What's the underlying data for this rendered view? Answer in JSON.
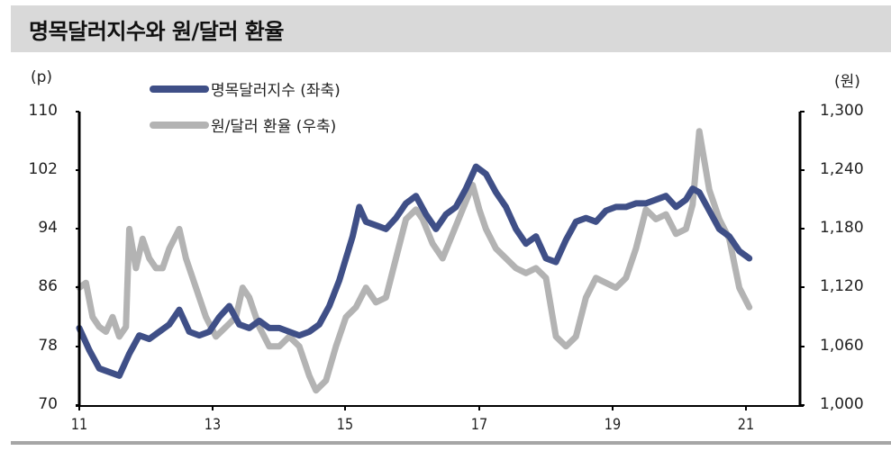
{
  "header": {
    "title": "명목달러지수와 원/달러 환율"
  },
  "chart_data": {
    "type": "line",
    "title": "명목달러지수와 원/달러 환율",
    "left_axis": {
      "unit_label": "(p)",
      "ylim": [
        70,
        110
      ],
      "ticks": [
        "110",
        "102",
        "94",
        "86",
        "78",
        "70"
      ]
    },
    "right_axis": {
      "unit_label": "(원)",
      "ylim": [
        1000,
        1300
      ],
      "ticks": [
        "1,300",
        "1,240",
        "1,180",
        "1,120",
        "1,060",
        "1,000"
      ]
    },
    "x_axis": {
      "ticks": [
        "11",
        "13",
        "15",
        "17",
        "19",
        "21"
      ],
      "xlim": [
        2011.0,
        2021.9
      ]
    },
    "grid": false,
    "legend_position": "top-left",
    "series": [
      {
        "name": "명목달러지수 (좌축)",
        "axis": "left",
        "color": "#3f4f87",
        "x": [
          2011.0,
          2011.15,
          2011.3,
          2011.45,
          2011.6,
          2011.75,
          2011.9,
          2012.05,
          2012.2,
          2012.35,
          2012.5,
          2012.65,
          2012.8,
          2012.95,
          2013.1,
          2013.25,
          2013.4,
          2013.55,
          2013.7,
          2013.85,
          2014.0,
          2014.15,
          2014.3,
          2014.45,
          2014.6,
          2014.75,
          2014.9,
          2015.0,
          2015.1,
          2015.2,
          2015.3,
          2015.45,
          2015.6,
          2015.75,
          2015.9,
          2016.05,
          2016.2,
          2016.35,
          2016.5,
          2016.65,
          2016.8,
          2016.95,
          2017.1,
          2017.25,
          2017.4,
          2017.55,
          2017.7,
          2017.85,
          2018.0,
          2018.15,
          2018.3,
          2018.45,
          2018.6,
          2018.75,
          2018.9,
          2019.05,
          2019.2,
          2019.35,
          2019.5,
          2019.65,
          2019.8,
          2019.95,
          2020.1,
          2020.2,
          2020.3,
          2020.45,
          2020.6,
          2020.75,
          2020.9,
          2021.05
        ],
        "values": [
          80.5,
          77.5,
          75.0,
          74.5,
          74.0,
          77.0,
          79.5,
          79.0,
          80.0,
          81.0,
          83.0,
          80.0,
          79.5,
          80.0,
          82.0,
          83.5,
          81.0,
          80.5,
          81.5,
          80.5,
          80.5,
          80.0,
          79.5,
          80.0,
          81.0,
          83.5,
          87.0,
          90.0,
          93.0,
          97.0,
          95.0,
          94.5,
          94.0,
          95.5,
          97.5,
          98.5,
          96.0,
          94.0,
          96.0,
          97.0,
          99.5,
          102.5,
          101.5,
          99.0,
          97.0,
          94.0,
          92.0,
          93.0,
          90.0,
          89.5,
          92.5,
          95.0,
          95.5,
          95.0,
          96.5,
          97.0,
          97.0,
          97.5,
          97.5,
          98.0,
          98.5,
          97.0,
          98.0,
          99.5,
          99.0,
          96.5,
          94.0,
          93.0,
          91.0,
          90.0
        ]
      },
      {
        "name": "원/달러 환율 (우축)",
        "axis": "right",
        "color": "#b3b3b3",
        "x": [
          2011.0,
          2011.1,
          2011.2,
          2011.3,
          2011.4,
          2011.5,
          2011.6,
          2011.7,
          2011.75,
          2011.85,
          2011.95,
          2012.05,
          2012.15,
          2012.25,
          2012.35,
          2012.5,
          2012.6,
          2012.75,
          2012.9,
          2013.05,
          2013.2,
          2013.35,
          2013.45,
          2013.55,
          2013.7,
          2013.85,
          2014.0,
          2014.15,
          2014.3,
          2014.45,
          2014.55,
          2014.7,
          2014.85,
          2015.0,
          2015.15,
          2015.3,
          2015.45,
          2015.6,
          2015.75,
          2015.9,
          2016.05,
          2016.15,
          2016.3,
          2016.45,
          2016.6,
          2016.75,
          2016.9,
          2017.0,
          2017.1,
          2017.25,
          2017.4,
          2017.55,
          2017.7,
          2017.85,
          2018.0,
          2018.15,
          2018.3,
          2018.45,
          2018.6,
          2018.75,
          2018.9,
          2019.05,
          2019.2,
          2019.35,
          2019.5,
          2019.65,
          2019.8,
          2019.95,
          2020.1,
          2020.2,
          2020.3,
          2020.45,
          2020.6,
          2020.75,
          2020.9,
          2021.05
        ],
        "values": [
          1120,
          1125,
          1090,
          1080,
          1075,
          1090,
          1070,
          1080,
          1180,
          1140,
          1170,
          1150,
          1140,
          1140,
          1160,
          1180,
          1150,
          1120,
          1090,
          1070,
          1080,
          1090,
          1120,
          1110,
          1080,
          1060,
          1060,
          1070,
          1060,
          1030,
          1015,
          1025,
          1060,
          1090,
          1100,
          1120,
          1105,
          1110,
          1150,
          1190,
          1200,
          1190,
          1165,
          1150,
          1175,
          1200,
          1225,
          1200,
          1180,
          1160,
          1150,
          1140,
          1135,
          1140,
          1130,
          1070,
          1060,
          1070,
          1110,
          1130,
          1125,
          1120,
          1130,
          1160,
          1200,
          1190,
          1195,
          1175,
          1180,
          1205,
          1280,
          1220,
          1190,
          1170,
          1120,
          1100
        ]
      }
    ]
  },
  "legend": {
    "items": [
      {
        "label": "명목달러지수 (좌축)",
        "color": "#3f4f87"
      },
      {
        "label": "원/달러 환율 (우축)",
        "color": "#b3b3b3"
      }
    ]
  }
}
